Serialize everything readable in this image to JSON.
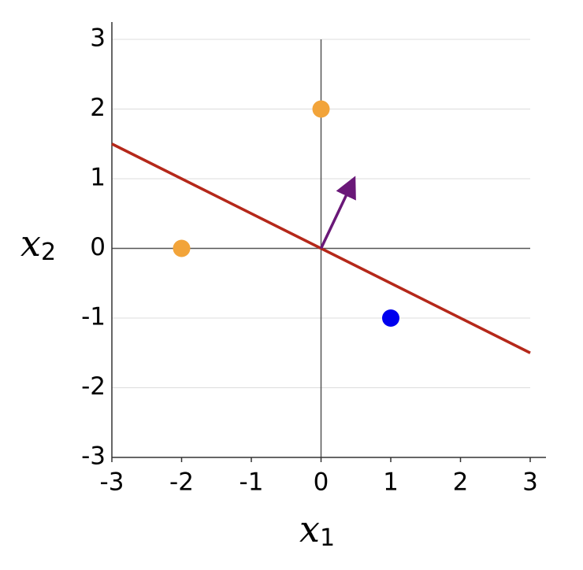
{
  "chart_data": {
    "type": "scatter",
    "xlabel": "x",
    "xlabel_sub": "1",
    "ylabel": "x",
    "ylabel_sub": "2",
    "xlim": [
      -3,
      3
    ],
    "ylim": [
      -3,
      3
    ],
    "xticks": [
      -3,
      -2,
      -1,
      0,
      1,
      2,
      3
    ],
    "yticks": [
      -3,
      -2,
      -1,
      0,
      1,
      2,
      3
    ],
    "grid": true,
    "zero_lines": true,
    "series": [
      {
        "color": "#f2a43a",
        "x": [
          -2,
          0
        ],
        "values": [
          0,
          2
        ]
      },
      {
        "color": "#0000ee",
        "x": [
          1
        ],
        "values": [
          -1
        ]
      }
    ],
    "lines": [
      {
        "color": "#b5281a",
        "x": [
          -3,
          3
        ],
        "values": [
          1.5,
          -1.5
        ]
      }
    ],
    "arrows": [
      {
        "color": "#6a1878",
        "x": [
          0,
          0.46
        ],
        "values": [
          0,
          0.97
        ]
      }
    ]
  }
}
